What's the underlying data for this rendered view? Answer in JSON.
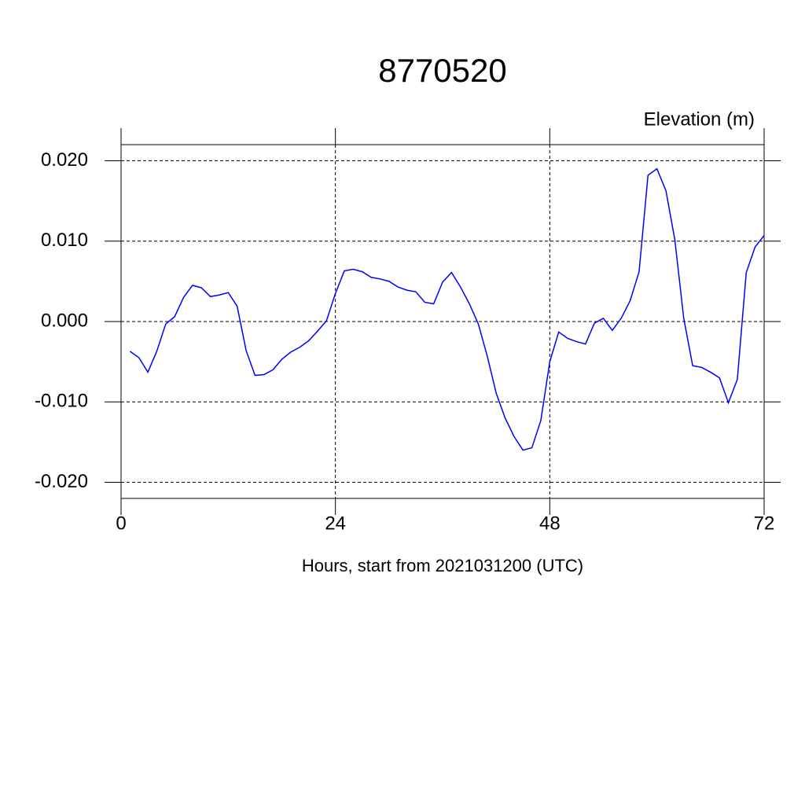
{
  "chart_data": {
    "type": "line",
    "title": "8770520",
    "ylabel": "Elevation (m)",
    "xlabel": "Hours, start from 2021031200 (UTC)",
    "x": [
      1,
      2,
      3,
      4,
      5,
      6,
      7,
      8,
      9,
      10,
      11,
      12,
      13,
      14,
      15,
      16,
      17,
      18,
      19,
      20,
      21,
      22,
      23,
      24,
      25,
      26,
      27,
      28,
      29,
      30,
      31,
      32,
      33,
      34,
      35,
      36,
      37,
      38,
      39,
      40,
      41,
      42,
      43,
      44,
      45,
      46,
      47,
      48,
      49,
      50,
      51,
      52,
      53,
      54,
      55,
      56,
      57,
      58,
      59,
      60,
      61,
      62,
      63,
      64,
      65,
      66,
      67,
      68,
      69,
      70,
      71,
      72
    ],
    "series": [
      {
        "color": "#0000ff",
        "values": [
          -0.0037,
          -0.0045,
          -0.0063,
          -0.0037,
          -0.0003,
          0.0006,
          0.003,
          0.0045,
          0.0042,
          0.0031,
          0.0033,
          0.0036,
          0.0019,
          -0.0036,
          -0.0067,
          -0.0066,
          -0.006,
          -0.0047,
          -0.0038,
          -0.0032,
          -0.0024,
          -0.0012,
          0.0001,
          0.0035,
          0.0063,
          0.0065,
          0.0062,
          0.0055,
          0.0053,
          0.005,
          0.0043,
          0.0039,
          0.0037,
          0.0024,
          0.0022,
          0.0049,
          0.0061,
          0.0043,
          0.0022,
          -0.0003,
          -0.0043,
          -0.0089,
          -0.012,
          -0.0143,
          -0.016,
          -0.0157,
          -0.0123,
          -0.005,
          -0.0013,
          -0.0021,
          -0.0025,
          -0.0028,
          -0.0002,
          0.0004,
          -0.0011,
          0.0004,
          0.0026,
          0.0062,
          0.0182,
          0.019,
          0.0163,
          0.0102,
          0.0004,
          -0.0055,
          -0.0057,
          -0.0063,
          -0.007,
          -0.0101,
          -0.0072,
          0.0061,
          0.0093,
          0.0107
        ]
      }
    ],
    "xlim": [
      0,
      72
    ],
    "xticks": [
      0,
      24,
      48,
      72
    ],
    "ylim": [
      -0.022,
      0.022
    ],
    "yticks": [
      {
        "value": -0.02,
        "label": "-0.020"
      },
      {
        "value": -0.01,
        "label": "-0.010"
      },
      {
        "value": 0,
        "label": "0.000"
      },
      {
        "value": 0.01,
        "label": "0.010"
      },
      {
        "value": 0.02,
        "label": "0.020"
      }
    ],
    "grid": true
  }
}
